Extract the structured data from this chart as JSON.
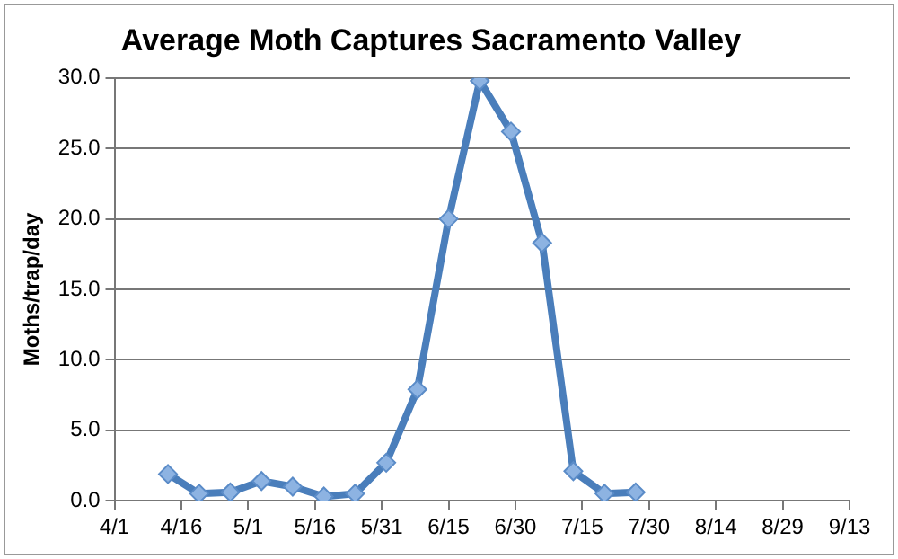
{
  "chart_data": {
    "type": "line",
    "title": "Average Moth Captures Sacramento Valley",
    "ylabel": "Moths/trap/day",
    "x": [
      "--04-13",
      "--04-20",
      "--04-27",
      "--05-04",
      "--05-11",
      "--05-18",
      "--05-25",
      "--06-01",
      "--06-08",
      "--06-15",
      "--06-22",
      "--06-29",
      "--07-06",
      "--07-13",
      "--07-20",
      "--07-27"
    ],
    "series": [
      {
        "color": "#4a7ebb",
        "values": [
          1.9,
          0.5,
          0.6,
          1.4,
          1.0,
          0.3,
          0.5,
          2.7,
          7.9,
          20.0,
          29.8,
          26.2,
          18.3,
          2.1,
          0.5,
          0.6
        ]
      }
    ],
    "xlim": [
      "--04-01",
      "--09-13"
    ],
    "xticks": [
      {
        "value": "--04-01",
        "label": "4/1"
      },
      {
        "value": "--04-16",
        "label": "4/16"
      },
      {
        "value": "--05-01",
        "label": "5/1"
      },
      {
        "value": "--05-16",
        "label": "5/16"
      },
      {
        "value": "--05-31",
        "label": "5/31"
      },
      {
        "value": "--06-15",
        "label": "6/15"
      },
      {
        "value": "--06-30",
        "label": "6/30"
      },
      {
        "value": "--07-15",
        "label": "7/15"
      },
      {
        "value": "--07-30",
        "label": "7/30"
      },
      {
        "value": "--08-14",
        "label": "8/14"
      },
      {
        "value": "--08-29",
        "label": "8/29"
      },
      {
        "value": "--09-13",
        "label": "9/13"
      }
    ],
    "ylim": [
      0,
      30
    ],
    "yticks": [
      {
        "value": 0,
        "label": "0.0"
      },
      {
        "value": 5,
        "label": "5.0"
      },
      {
        "value": 10,
        "label": "10.0"
      },
      {
        "value": 15,
        "label": "15.0"
      },
      {
        "value": 20,
        "label": "20.0"
      },
      {
        "value": 25,
        "label": "25.0"
      },
      {
        "value": 30,
        "label": "30.0"
      }
    ],
    "grid": "y",
    "legend": false,
    "marker": "diamond",
    "line_style": "solid"
  }
}
